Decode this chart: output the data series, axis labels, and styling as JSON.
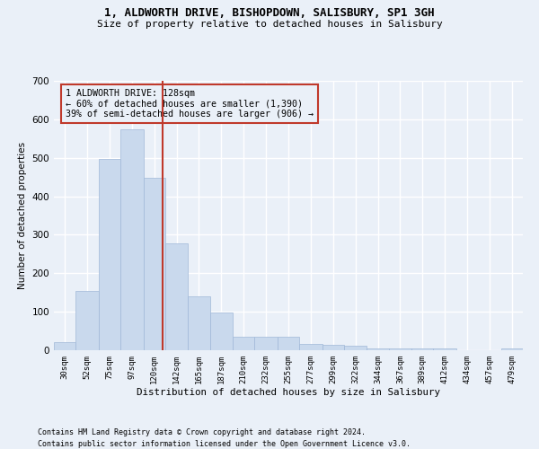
{
  "title1": "1, ALDWORTH DRIVE, BISHOPDOWN, SALISBURY, SP1 3GH",
  "title2": "Size of property relative to detached houses in Salisbury",
  "xlabel": "Distribution of detached houses by size in Salisbury",
  "ylabel": "Number of detached properties",
  "footnote1": "Contains HM Land Registry data © Crown copyright and database right 2024.",
  "footnote2": "Contains public sector information licensed under the Open Government Licence v3.0.",
  "annotation_line1": "1 ALDWORTH DRIVE: 128sqm",
  "annotation_line2": "← 60% of detached houses are smaller (1,390)",
  "annotation_line3": "39% of semi-detached houses are larger (906) →",
  "bar_color": "#c9d9ed",
  "bar_edge_color": "#a0b8d8",
  "marker_color": "#c0392b",
  "marker_x": 128,
  "categories": [
    "30sqm",
    "52sqm",
    "75sqm",
    "97sqm",
    "120sqm",
    "142sqm",
    "165sqm",
    "187sqm",
    "210sqm",
    "232sqm",
    "255sqm",
    "277sqm",
    "299sqm",
    "322sqm",
    "344sqm",
    "367sqm",
    "389sqm",
    "412sqm",
    "434sqm",
    "457sqm",
    "479sqm"
  ],
  "values": [
    22,
    155,
    498,
    573,
    447,
    277,
    140,
    98,
    36,
    36,
    36,
    17,
    15,
    11,
    5,
    5,
    5,
    5,
    1,
    1,
    5
  ],
  "bin_edges": [
    19,
    41,
    64,
    86,
    109,
    131,
    154,
    176,
    199,
    221,
    244,
    266,
    289,
    311,
    334,
    356,
    379,
    401,
    424,
    446,
    469,
    491
  ],
  "ylim": [
    0,
    700
  ],
  "xlim": [
    19,
    491
  ],
  "background_color": "#eaf0f8",
  "grid_color": "#ffffff",
  "yticks": [
    0,
    100,
    200,
    300,
    400,
    500,
    600,
    700
  ]
}
